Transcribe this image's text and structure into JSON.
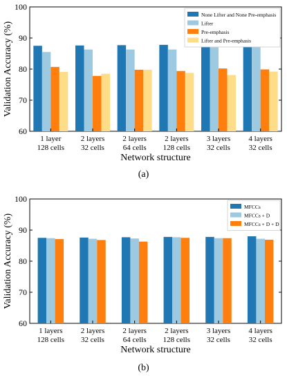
{
  "chart_data": [
    {
      "type": "bar",
      "panel": "(a)",
      "ylabel": "Validation Accuracy (%)",
      "xlabel": "Network structure",
      "ylim": [
        60,
        100
      ],
      "yticks": [
        60,
        70,
        80,
        90,
        100
      ],
      "legend_position": "top-right",
      "categories": [
        [
          "1 layer",
          "128 cells"
        ],
        [
          "2 layers",
          "32 cells"
        ],
        [
          "2 layers",
          "64 cells"
        ],
        [
          "2 layers",
          "128 cells"
        ],
        [
          "3 layers",
          "32 cells"
        ],
        [
          "4 layers",
          "32 cells"
        ]
      ],
      "series": [
        {
          "name": "None Lifter and None Pre-emphasis",
          "color": "#1f77b4",
          "values": [
            87.5,
            87.6,
            87.7,
            87.8,
            87.8,
            88.0
          ]
        },
        {
          "name": "Lifter",
          "color": "#9ecae1",
          "values": [
            85.5,
            86.3,
            86.3,
            86.3,
            87.0,
            87.4
          ]
        },
        {
          "name": "Pre-emphasis",
          "color": "#ff7f0e",
          "values": [
            80.7,
            77.8,
            79.8,
            79.4,
            80.2,
            79.9
          ]
        },
        {
          "name": "Lifter and Pre-emphasis",
          "color": "#ffdd88",
          "values": [
            79.1,
            78.5,
            79.8,
            78.8,
            78.1,
            79.2
          ]
        }
      ]
    },
    {
      "type": "bar",
      "panel": "(b)",
      "ylabel": "Validation Accuracy (%)",
      "xlabel": "Network structure",
      "ylim": [
        60,
        100
      ],
      "yticks": [
        60,
        70,
        80,
        90,
        100
      ],
      "legend_position": "top-right",
      "categories": [
        [
          "1 layers",
          "128 cells"
        ],
        [
          "2 layers",
          "32 cells"
        ],
        [
          "2 layers",
          "64 cells"
        ],
        [
          "2 layers",
          "128 cells"
        ],
        [
          "3 layers",
          "32 cells"
        ],
        [
          "4 layers",
          "32 cells"
        ]
      ],
      "series": [
        {
          "name": "MFCCs",
          "color": "#1f77b4",
          "values": [
            87.5,
            87.6,
            87.7,
            87.8,
            87.8,
            88.0
          ]
        },
        {
          "name": "MFCCs + D",
          "color": "#9ecae1",
          "values": [
            87.4,
            87.2,
            87.3,
            87.7,
            87.4,
            87.2
          ]
        },
        {
          "name": "MFCCs + D + D",
          "color": "#ff7f0e",
          "values": [
            87.1,
            86.8,
            86.3,
            87.5,
            87.4,
            86.9
          ]
        }
      ]
    }
  ]
}
